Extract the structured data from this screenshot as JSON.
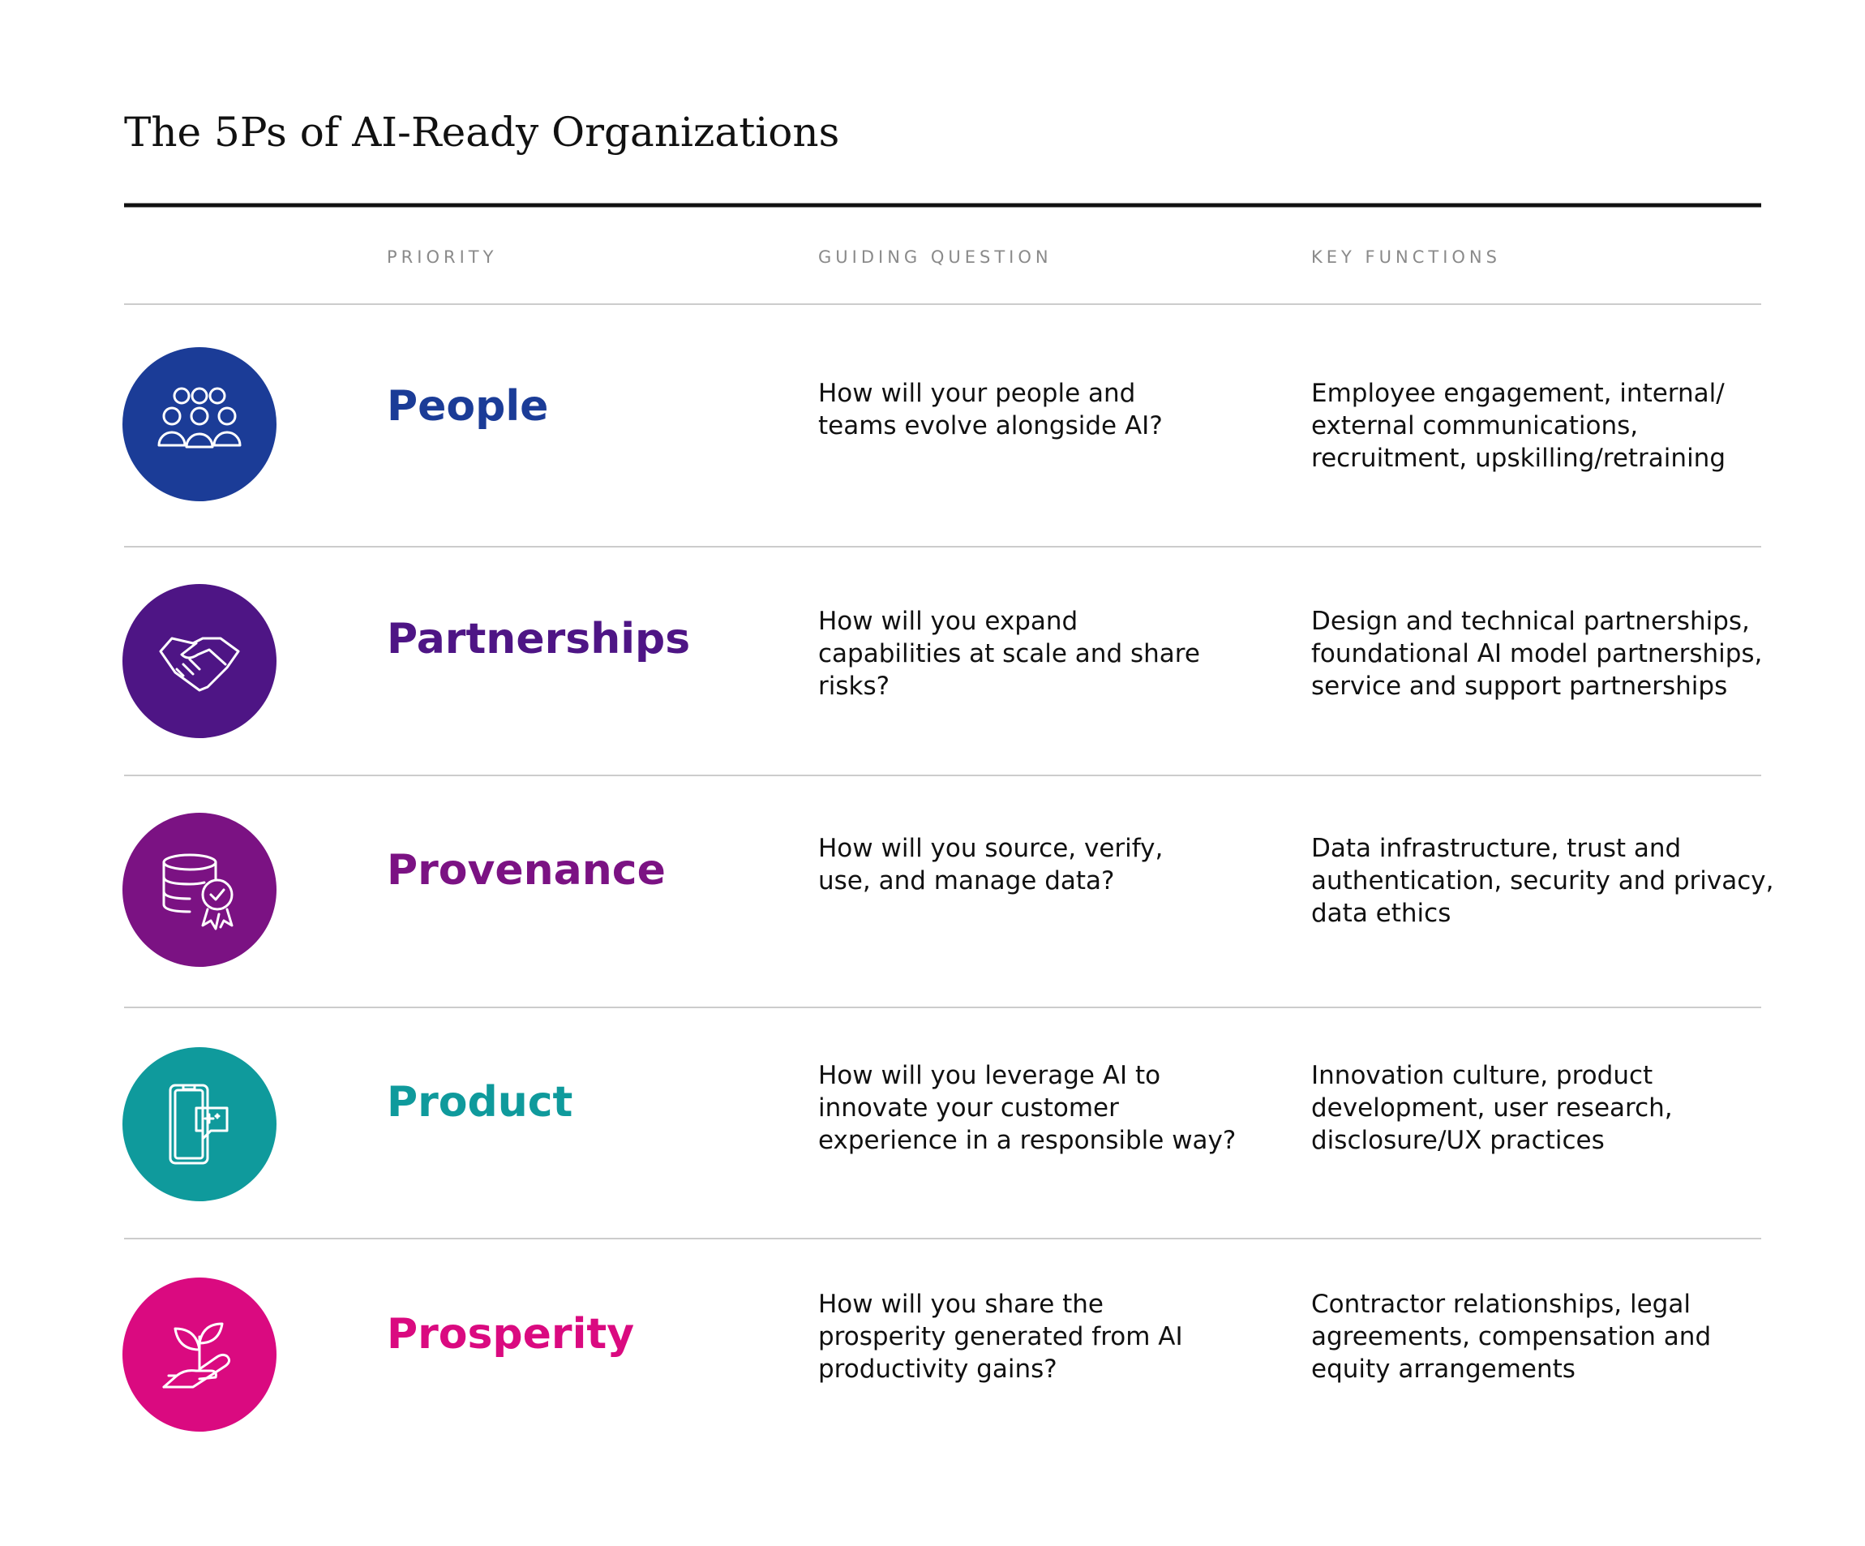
{
  "header": {
    "title": "The 5Ps of AI-Ready Organizations"
  },
  "table": {
    "columns": [
      "PRIORITY",
      "GUIDING QUESTION",
      "KEY FUNCTIONS"
    ],
    "rows": [
      {
        "priority": "People",
        "color": "#1b3c97",
        "question": [
          "How will your people and",
          "teams evolve alongside AI?"
        ],
        "functions": [
          "Employee engagement, internal/",
          "external communications,",
          "recruitment, upskilling/retraining"
        ]
      },
      {
        "priority": "Partnerships",
        "color": "#4e1585",
        "question": [
          "How will you expand",
          "capabilities at scale and share",
          "risks?"
        ],
        "functions": [
          "Design and technical partnerships,",
          "foundational AI model partnerships,",
          "service and support partnerships"
        ]
      },
      {
        "priority": "Provenance",
        "color": "#7b1283",
        "question": [
          "How will you source, verify,",
          "use, and manage data?"
        ],
        "functions": [
          "Data infrastructure, trust and",
          "authentication, security and privacy,",
          "data ethics"
        ]
      },
      {
        "priority": "Product",
        "color": "#0f9a9c",
        "question": [
          "How will you leverage AI to",
          "innovate your customer",
          "experience in a responsible way?"
        ],
        "functions": [
          "Innovation culture, product",
          "development, user research,",
          "disclosure/UX practices"
        ]
      },
      {
        "priority": "Prosperity",
        "color": "#da0a80",
        "question": [
          "How will you share the",
          "prosperity generated from AI",
          "productivity gains?"
        ],
        "functions": [
          "Contractor relationships, legal",
          "agreements, compensation and",
          "equity arrangements"
        ]
      }
    ]
  }
}
